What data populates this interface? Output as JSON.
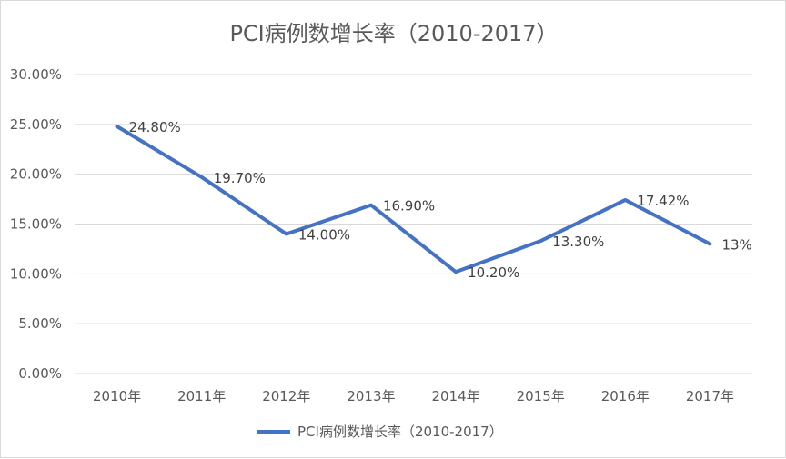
{
  "chart_data": {
    "type": "line",
    "title": "PCI病例数增长率（2010-2017）",
    "categories": [
      "2010年",
      "2011年",
      "2012年",
      "2013年",
      "2014年",
      "2015年",
      "2016年",
      "2017年"
    ],
    "series": [
      {
        "name": "PCI病例数增长率（2010-2017）",
        "values": [
          24.8,
          19.7,
          14.0,
          16.9,
          10.2,
          13.3,
          17.42,
          13.0
        ],
        "labels": [
          "24.80%",
          "19.70%",
          "14.00%",
          "16.90%",
          "10.20%",
          "13.30%",
          "17.42%",
          "13%"
        ],
        "color": "#4472c4"
      }
    ],
    "ylim": [
      0,
      30
    ],
    "yticks": [
      "0.00%",
      "5.00%",
      "10.00%",
      "15.00%",
      "20.00%",
      "25.00%",
      "30.00%"
    ],
    "grid": true,
    "legend": "bottom"
  }
}
